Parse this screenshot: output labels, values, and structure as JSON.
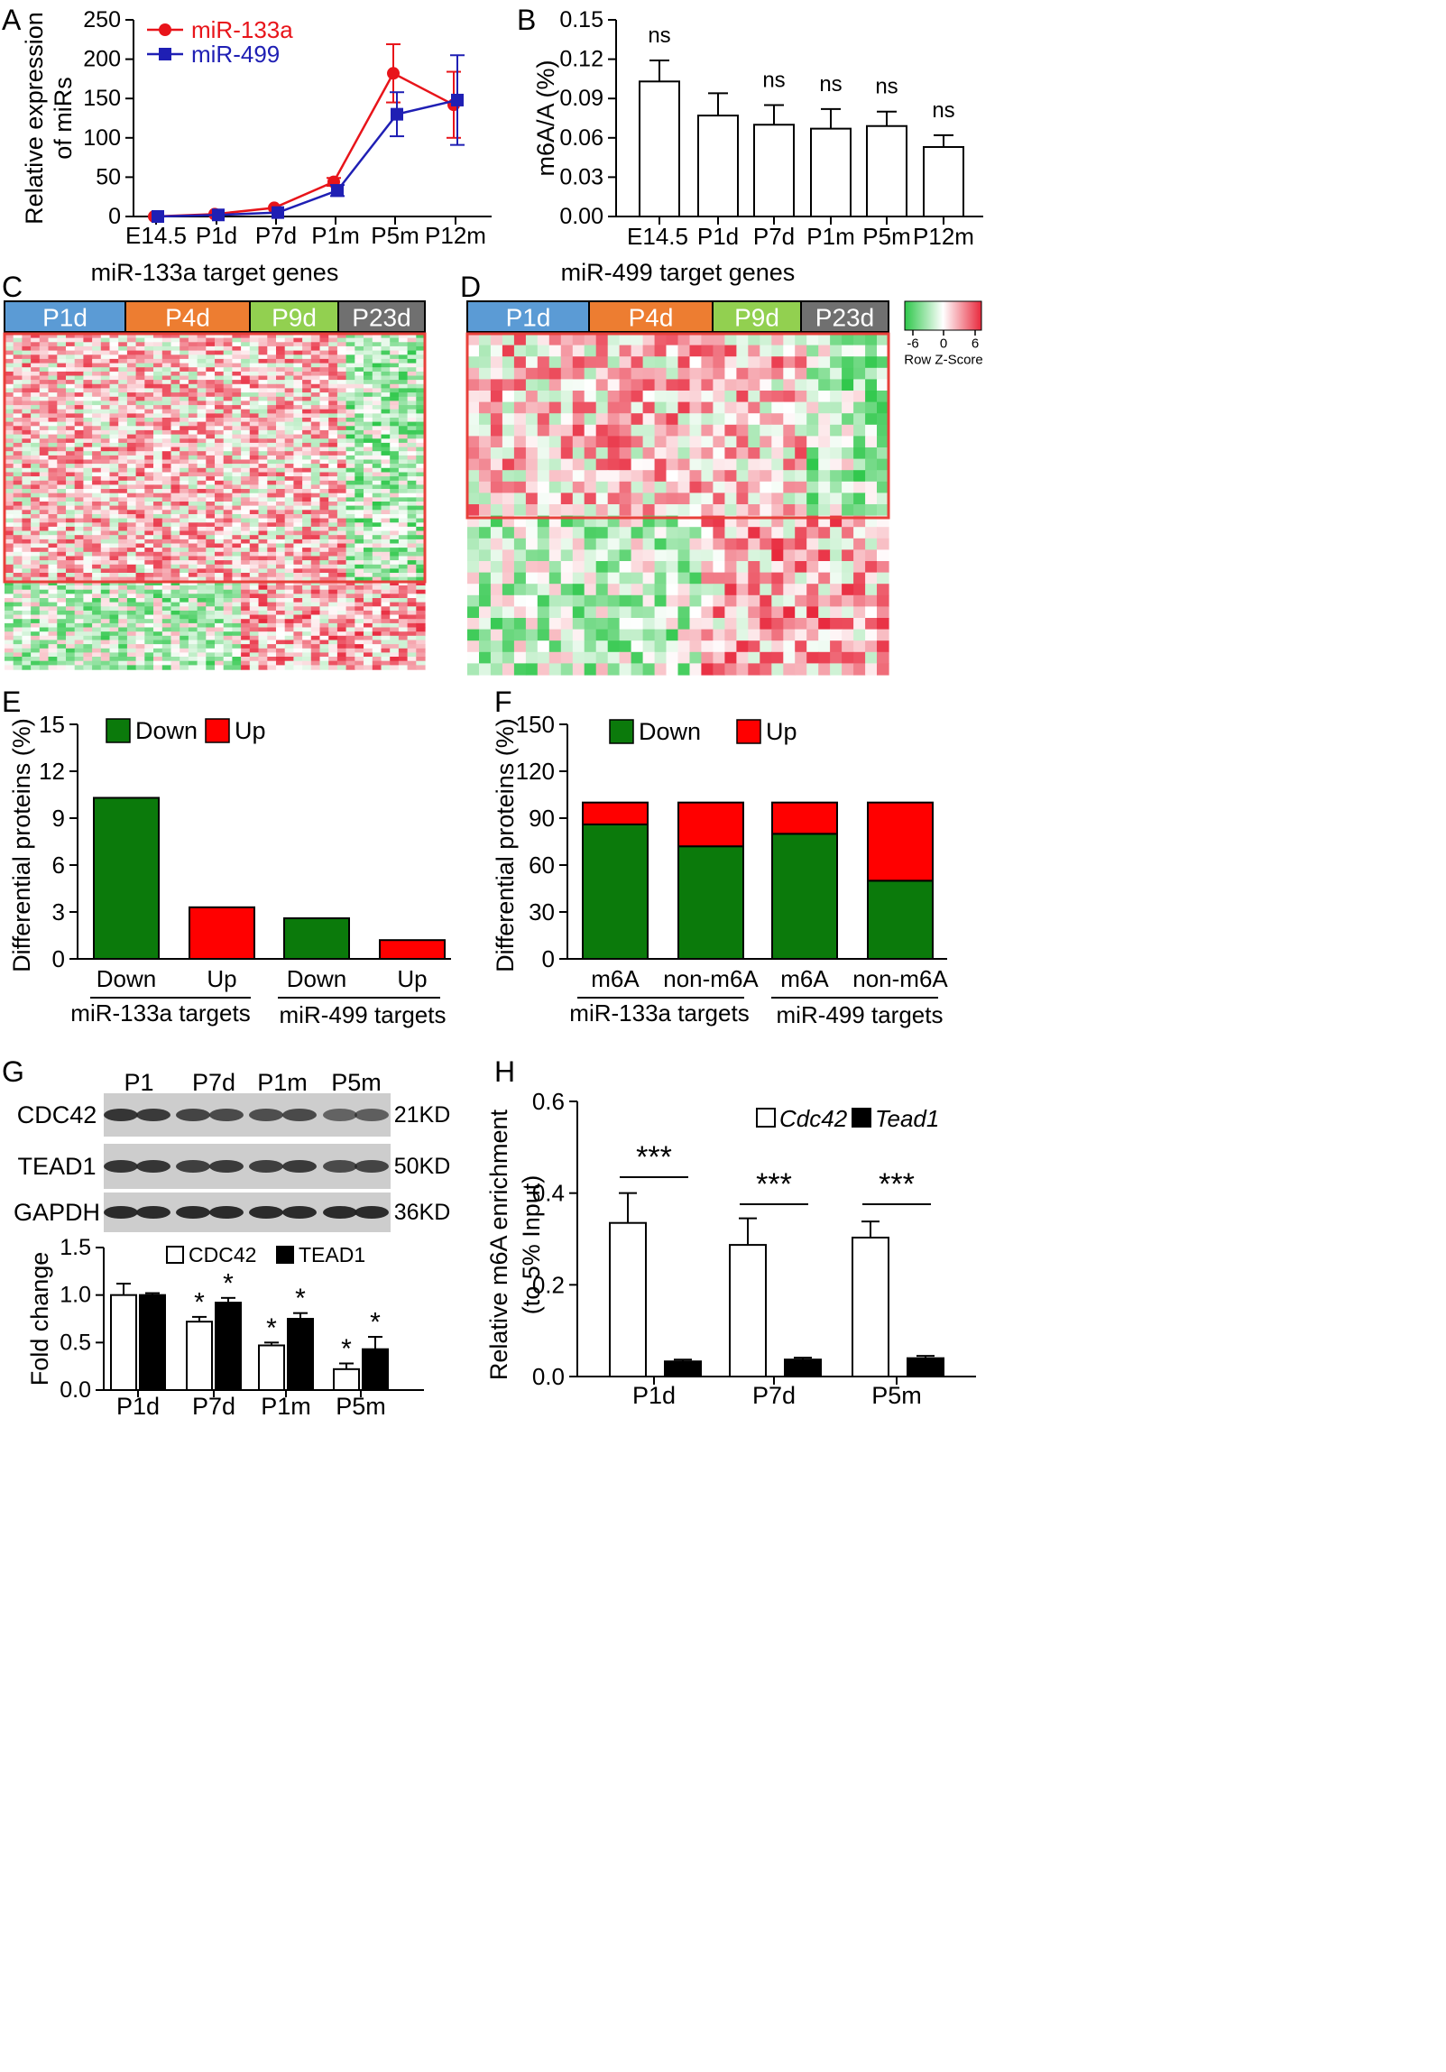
{
  "figure": {
    "panel_letters": [
      "A",
      "B",
      "C",
      "D",
      "E",
      "F",
      "G",
      "H"
    ]
  },
  "colors": {
    "red": "#e8141a",
    "blue": "#1f1fb4",
    "green": "#0b7a0b",
    "upred": "#ff0000",
    "p1d": "#5b9bd5",
    "p4d": "#ed7d31",
    "p9d": "#92d050",
    "p23d": "#707070",
    "hm_low": "#2ec74a",
    "hm_high": "#e8283c",
    "box": "#e8403a"
  },
  "chart_data": [
    {
      "id": "A",
      "type": "line",
      "categories": [
        "E14.5",
        "P1d",
        "P7d",
        "P1m",
        "P5m",
        "P12m"
      ],
      "series": [
        {
          "name": "miR-133a",
          "values": [
            0,
            3,
            11,
            44,
            182,
            142
          ],
          "err": [
            2,
            2,
            3,
            5,
            37,
            42
          ],
          "color": "#e8141a",
          "marker": "circle"
        },
        {
          "name": "miR-499",
          "values": [
            0,
            2,
            5,
            33,
            130,
            148
          ],
          "err": [
            2,
            2,
            2,
            7,
            28,
            57
          ],
          "color": "#1f1fb4",
          "marker": "square"
        }
      ],
      "ylabel_lines": [
        "Relative expression",
        "of miRs"
      ],
      "ylim": [
        0,
        250
      ],
      "yticks": [
        0,
        50,
        100,
        150,
        200,
        250
      ]
    },
    {
      "id": "B",
      "type": "bar",
      "categories": [
        "E14.5",
        "P1d",
        "P7d",
        "P1m",
        "P5m",
        "P12m"
      ],
      "values": [
        0.103,
        0.077,
        0.07,
        0.067,
        0.069,
        0.053
      ],
      "err": [
        0.016,
        0.017,
        0.015,
        0.015,
        0.011,
        0.009
      ],
      "annotations": [
        "ns",
        "",
        "ns",
        "ns",
        "ns",
        "ns"
      ],
      "ylabel": "m6A/A (%)",
      "ylim": [
        0,
        0.15
      ],
      "yticks": [
        "0.00",
        "0.03",
        "0.06",
        "0.09",
        "0.12",
        "0.15"
      ]
    },
    {
      "id": "C",
      "type": "heatmap",
      "title": "miR-133a target genes",
      "groups": [
        "P1d",
        "P4d",
        "P9d",
        "P23d"
      ]
    },
    {
      "id": "D",
      "type": "heatmap",
      "title": "miR-499 target genes",
      "groups": [
        "P1d",
        "P4d",
        "P9d",
        "P23d"
      ],
      "scale_ticks": [
        "-6",
        "0",
        "6"
      ],
      "scale_label": "Row Z-Score"
    },
    {
      "id": "E",
      "type": "bar",
      "categories": [
        "Down",
        "Up",
        "Down",
        "Up"
      ],
      "values": [
        10.3,
        3.3,
        2.6,
        1.2
      ],
      "bar_colors": [
        "#0b7a0b",
        "#ff0000",
        "#0b7a0b",
        "#ff0000"
      ],
      "groups": [
        "miR-133a targets",
        "miR-499 targets"
      ],
      "legend": [
        "Down",
        "Up"
      ],
      "ylabel": "Differential proteins (%)",
      "ylim": [
        0,
        15
      ],
      "yticks": [
        0,
        3,
        6,
        9,
        12,
        15
      ]
    },
    {
      "id": "F",
      "type": "bar",
      "categories": [
        "m6A",
        "non-m6A",
        "m6A",
        "non-m6A"
      ],
      "series": [
        {
          "name": "Down",
          "values": [
            86,
            72,
            80,
            50
          ],
          "color": "#0b7a0b"
        },
        {
          "name": "Up",
          "values": [
            14,
            28,
            20,
            50
          ],
          "color": "#ff0000"
        }
      ],
      "groups": [
        "miR-133a targets",
        "miR-499 targets"
      ],
      "legend": [
        "Down",
        "Up"
      ],
      "ylabel": "Differential proteins (%)",
      "ylim": [
        0,
        150
      ],
      "yticks": [
        0,
        30,
        60,
        90,
        120,
        150
      ]
    },
    {
      "id": "G",
      "type": "bar",
      "blot_times": [
        "P1",
        "P7d",
        "P1m",
        "P5m"
      ],
      "blot_proteins": [
        {
          "name": "CDC42",
          "kd": "21KD"
        },
        {
          "name": "TEAD1",
          "kd": "50KD"
        },
        {
          "name": "GAPDH",
          "kd": "36KD"
        }
      ],
      "categories": [
        "P1d",
        "P7d",
        "P1m",
        "P5m"
      ],
      "series": [
        {
          "name": "CDC42",
          "values": [
            1.0,
            0.72,
            0.47,
            0.22
          ],
          "err": [
            0.12,
            0.05,
            0.03,
            0.06
          ],
          "fill": "#ffffff"
        },
        {
          "name": "TEAD1",
          "values": [
            1.0,
            0.92,
            0.75,
            0.43
          ],
          "err": [
            0.02,
            0.05,
            0.06,
            0.13
          ],
          "fill": "#000000"
        }
      ],
      "annotations": [
        "",
        "*",
        "*",
        "*"
      ],
      "ylabel": "Fold change",
      "ylim": [
        0,
        1.5
      ],
      "yticks": [
        "0.0",
        "0.5",
        "1.0",
        "1.5"
      ]
    },
    {
      "id": "H",
      "type": "bar",
      "categories": [
        "P1d",
        "P7d",
        "P5m"
      ],
      "series": [
        {
          "name": "Cdc42",
          "values": [
            0.335,
            0.287,
            0.303
          ],
          "err": [
            0.065,
            0.058,
            0.035
          ],
          "fill": "#ffffff"
        },
        {
          "name": "Tead1",
          "values": [
            0.033,
            0.037,
            0.04
          ],
          "err": [
            0.004,
            0.004,
            0.005
          ],
          "fill": "#000000"
        }
      ],
      "annotations": [
        "***",
        "***",
        "***"
      ],
      "ylabel_lines": [
        "Relative m6A enrichment",
        "(to 5% Input)"
      ],
      "ylim": [
        0,
        0.6
      ],
      "yticks": [
        "0.0",
        "0.2",
        "0.4",
        "0.6"
      ]
    }
  ]
}
